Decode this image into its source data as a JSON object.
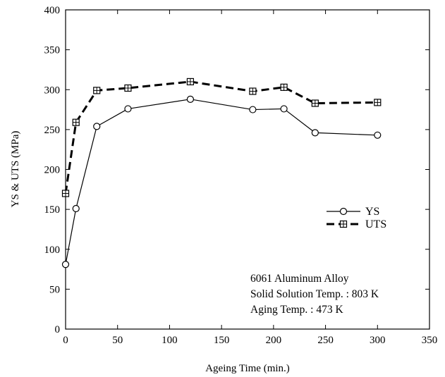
{
  "chart_data": {
    "type": "line",
    "xlabel": "Ageing Time (min.)",
    "ylabel": "YS & UTS (MPa)",
    "xlim": [
      0,
      350
    ],
    "ylim": [
      0,
      400
    ],
    "xticks": [
      0,
      50,
      100,
      150,
      200,
      250,
      300,
      350
    ],
    "yticks": [
      0,
      50,
      100,
      150,
      200,
      250,
      300,
      350,
      400
    ],
    "grid": false,
    "legend_position": "right-middle",
    "series": [
      {
        "name": "YS",
        "style": "solid-open-circle",
        "x": [
          0,
          10,
          30,
          60,
          120,
          180,
          210,
          240,
          300
        ],
        "y": [
          81,
          151,
          254,
          276,
          288,
          275,
          276,
          246,
          243
        ]
      },
      {
        "name": "UTS",
        "style": "dashed-boxed-plus",
        "x": [
          0,
          10,
          30,
          60,
          120,
          180,
          210,
          240,
          300
        ],
        "y": [
          170,
          259,
          299,
          302,
          310,
          298,
          303,
          283,
          284
        ]
      }
    ],
    "annotations": [
      "6061 Aluminum Alloy",
      "Solid Solution Temp. : 803 K",
      "Aging Temp. : 473 K"
    ]
  }
}
